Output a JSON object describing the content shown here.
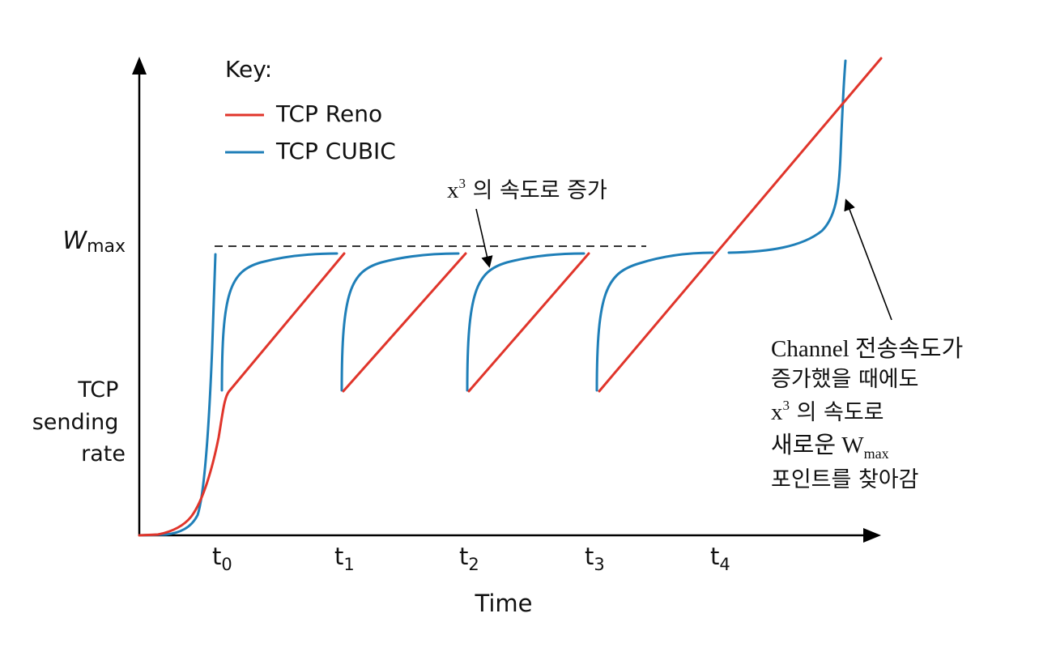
{
  "axes": {
    "y_label_lines": [
      "TCP",
      "sending",
      "rate"
    ],
    "y_marker_symbol": "W",
    "y_marker_sub": "max",
    "x_label": "Time",
    "x_ticks": [
      {
        "base": "t",
        "sub": "0"
      },
      {
        "base": "t",
        "sub": "1"
      },
      {
        "base": "t",
        "sub": "2"
      },
      {
        "base": "t",
        "sub": "3"
      },
      {
        "base": "t",
        "sub": "4"
      }
    ]
  },
  "legend": {
    "title": "Key:",
    "reno_label": "TCP Reno",
    "cubic_label": "TCP CUBIC"
  },
  "annotations": {
    "growth": {
      "base": "x",
      "sup": "3",
      "rest": " 의 속도로 증가"
    },
    "channel_lines": [
      {
        "text": "Channel 전송속도가"
      },
      {
        "text": "증가했을 때에도"
      },
      {
        "base": "x",
        "sup": "3",
        "rest": " 의 속도로"
      },
      {
        "before": "새로운 W",
        "sub": "max"
      },
      {
        "text": "포인트를 찾아감"
      }
    ]
  },
  "colors": {
    "reno": "#e0352b",
    "cubic": "#1f7fb8",
    "axis": "#000000"
  }
}
